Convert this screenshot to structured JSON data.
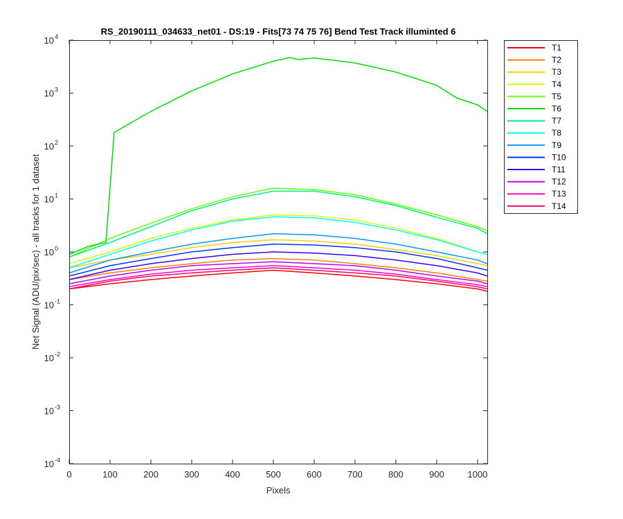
{
  "chart_data": {
    "type": "line",
    "title": "RS_20190111_034633_net01 - DS:19 - Fits[73  74  75  76]   Bend Test       Track illuminted 6",
    "xlabel": "Pixels",
    "ylabel": "Net Signal (ADU/pix/sec) - all tracks for 1 dataset",
    "xlim": [
      0,
      1024
    ],
    "ylim": [
      0.0001,
      10000
    ],
    "yscale": "log",
    "grid": false,
    "legend_position": "outside-right",
    "x_ticks": [
      "0",
      "100",
      "200",
      "300",
      "400",
      "500",
      "600",
      "700",
      "800",
      "900",
      "1000"
    ],
    "y_ticks": [
      {
        "base": "10",
        "exp": "-4"
      },
      {
        "base": "10",
        "exp": "-3"
      },
      {
        "base": "10",
        "exp": "-2"
      },
      {
        "base": "10",
        "exp": "-1"
      },
      {
        "base": "10",
        "exp": "0"
      },
      {
        "base": "10",
        "exp": "1"
      },
      {
        "base": "10",
        "exp": "2"
      },
      {
        "base": "10",
        "exp": "3"
      },
      {
        "base": "10",
        "exp": "4"
      }
    ],
    "series": [
      {
        "name": "T1",
        "color": "#ff0000",
        "x": [
          0,
          100,
          200,
          300,
          400,
          500,
          600,
          700,
          800,
          900,
          1000,
          1024
        ],
        "y": [
          0.2,
          0.25,
          0.3,
          0.35,
          0.4,
          0.45,
          0.4,
          0.35,
          0.3,
          0.25,
          0.2,
          0.18
        ]
      },
      {
        "name": "T2",
        "color": "#ff7f00",
        "x": [
          0,
          100,
          200,
          300,
          400,
          500,
          600,
          700,
          800,
          900,
          1000,
          1024
        ],
        "y": [
          0.3,
          0.4,
          0.5,
          0.6,
          0.7,
          0.75,
          0.7,
          0.6,
          0.5,
          0.4,
          0.3,
          0.28
        ]
      },
      {
        "name": "T3",
        "color": "#ffcc00",
        "x": [
          0,
          100,
          200,
          300,
          400,
          500,
          600,
          700,
          800,
          900,
          1000,
          1024
        ],
        "y": [
          0.5,
          0.7,
          0.9,
          1.2,
          1.5,
          1.7,
          1.6,
          1.4,
          1.1,
          0.85,
          0.6,
          0.55
        ]
      },
      {
        "name": "T4",
        "color": "#ccff00",
        "x": [
          0,
          100,
          200,
          300,
          400,
          500,
          600,
          700,
          800,
          900,
          1000,
          1024
        ],
        "y": [
          0.6,
          1.0,
          1.8,
          2.8,
          4.0,
          5.0,
          4.8,
          4.0,
          2.8,
          1.8,
          1.0,
          0.9
        ]
      },
      {
        "name": "T5",
        "color": "#66ff00",
        "x": [
          0,
          100,
          200,
          300,
          400,
          500,
          600,
          700,
          800,
          900,
          1000,
          1024
        ],
        "y": [
          0.8,
          1.8,
          3.5,
          6.5,
          11,
          16,
          15,
          12,
          8,
          5,
          3,
          2.5
        ]
      },
      {
        "name": "T6",
        "color": "#00dd00",
        "x": [
          0,
          50,
          90,
          110,
          200,
          300,
          400,
          500,
          540,
          560,
          600,
          700,
          800,
          900,
          950,
          1000,
          1024
        ],
        "y": [
          0.9,
          1.3,
          1.5,
          180,
          450,
          1100,
          2300,
          4000,
          4700,
          4300,
          4600,
          3700,
          2500,
          1400,
          800,
          600,
          450
        ]
      },
      {
        "name": "T7",
        "color": "#00ee88",
        "x": [
          0,
          100,
          200,
          300,
          400,
          500,
          600,
          700,
          800,
          900,
          1000,
          1024
        ],
        "y": [
          0.8,
          1.5,
          3,
          6,
          10,
          14,
          14,
          11,
          7.5,
          4.5,
          2.8,
          2.2
        ]
      },
      {
        "name": "T8",
        "color": "#00ffff",
        "x": [
          0,
          100,
          200,
          300,
          400,
          500,
          600,
          700,
          800,
          900,
          1000,
          1024
        ],
        "y": [
          0.5,
          0.9,
          1.6,
          2.6,
          3.8,
          4.6,
          4.4,
          3.6,
          2.6,
          1.7,
          1.0,
          0.9
        ]
      },
      {
        "name": "T9",
        "color": "#0099ff",
        "x": [
          0,
          100,
          200,
          300,
          400,
          500,
          600,
          700,
          800,
          900,
          1000,
          1024
        ],
        "y": [
          0.4,
          0.7,
          1.0,
          1.4,
          1.8,
          2.2,
          2.1,
          1.8,
          1.4,
          1.0,
          0.7,
          0.6
        ]
      },
      {
        "name": "T10",
        "color": "#0033ff",
        "x": [
          0,
          100,
          200,
          300,
          400,
          500,
          600,
          700,
          800,
          900,
          1000,
          1024
        ],
        "y": [
          0.35,
          0.55,
          0.75,
          1.0,
          1.2,
          1.4,
          1.35,
          1.2,
          1.0,
          0.75,
          0.5,
          0.45
        ]
      },
      {
        "name": "T11",
        "color": "#3300ff",
        "x": [
          0,
          100,
          200,
          300,
          400,
          500,
          600,
          700,
          800,
          900,
          1000,
          1024
        ],
        "y": [
          0.3,
          0.45,
          0.6,
          0.75,
          0.9,
          1.0,
          0.95,
          0.85,
          0.7,
          0.55,
          0.4,
          0.35
        ]
      },
      {
        "name": "T12",
        "color": "#bb00ff",
        "x": [
          0,
          100,
          200,
          300,
          400,
          500,
          600,
          700,
          800,
          900,
          1000,
          1024
        ],
        "y": [
          0.25,
          0.35,
          0.45,
          0.55,
          0.6,
          0.65,
          0.6,
          0.55,
          0.45,
          0.35,
          0.28,
          0.25
        ]
      },
      {
        "name": "T13",
        "color": "#ff00cc",
        "x": [
          0,
          100,
          200,
          300,
          400,
          500,
          600,
          700,
          800,
          900,
          1000,
          1024
        ],
        "y": [
          0.22,
          0.3,
          0.38,
          0.45,
          0.5,
          0.55,
          0.5,
          0.45,
          0.38,
          0.3,
          0.24,
          0.22
        ]
      },
      {
        "name": "T14",
        "color": "#ff0066",
        "x": [
          0,
          100,
          200,
          300,
          400,
          500,
          600,
          700,
          800,
          900,
          1000,
          1024
        ],
        "y": [
          0.2,
          0.28,
          0.35,
          0.4,
          0.45,
          0.5,
          0.45,
          0.4,
          0.35,
          0.28,
          0.22,
          0.2
        ]
      }
    ]
  }
}
